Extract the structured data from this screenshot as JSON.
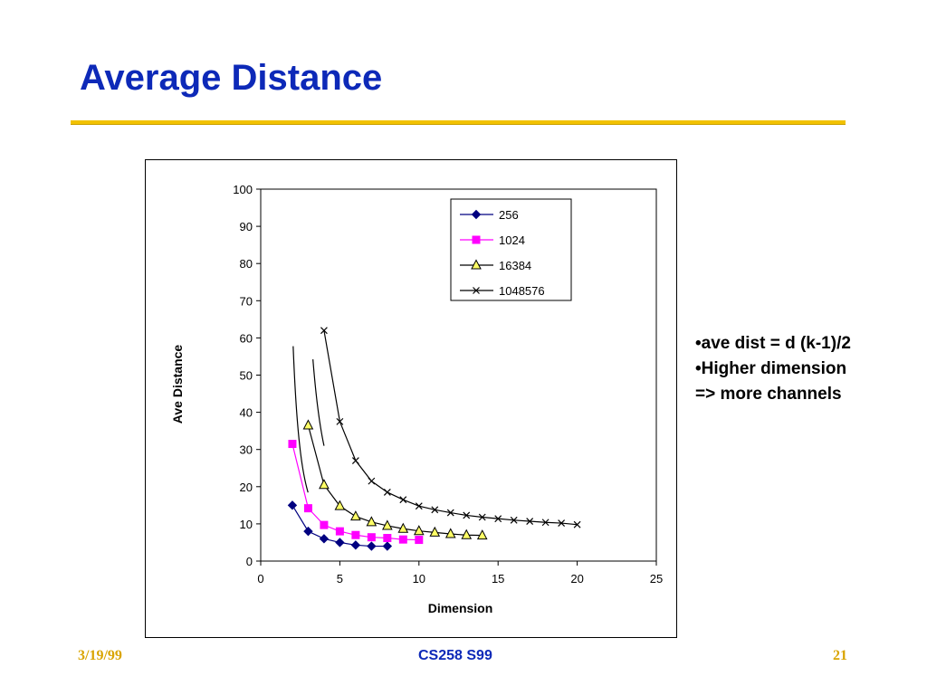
{
  "slide": {
    "title": "Average Distance",
    "accent_color": "#0d29b8",
    "rule_color": "#f2c200"
  },
  "notes": [
    "•ave dist = d (k-1)/2",
    "•Higher dimension",
    "=> more channels"
  ],
  "footer": {
    "date": "3/19/99",
    "course": "CS258 S99",
    "page": "21"
  },
  "chart_data": {
    "type": "line",
    "xlabel": "Dimension",
    "ylabel": "Ave Distance",
    "xlim": [
      0,
      25
    ],
    "ylim": [
      0,
      100
    ],
    "xticks": [
      0,
      5,
      10,
      15,
      20,
      25
    ],
    "yticks": [
      0,
      10,
      20,
      30,
      40,
      50,
      60,
      70,
      80,
      90,
      100
    ],
    "grid": false,
    "legend_position": "top-right",
    "series": [
      {
        "name": "256",
        "color": "#000080",
        "marker": "diamond",
        "x": [
          2,
          3,
          4,
          5,
          6,
          7,
          8
        ],
        "y": [
          15,
          8,
          6,
          5,
          4.3,
          4,
          4
        ]
      },
      {
        "name": "1024",
        "color": "#ff00ff",
        "marker": "square",
        "x": [
          2,
          3,
          4,
          5,
          6,
          7,
          8,
          9,
          10
        ],
        "y": [
          31.5,
          14.2,
          9.7,
          8,
          7,
          6.4,
          6.2,
          5.8,
          5.7
        ]
      },
      {
        "name": "16384",
        "color": "#000000",
        "marker": "triangle",
        "x": [
          3,
          4,
          5,
          6,
          7,
          8,
          9,
          10,
          11,
          12,
          13,
          14
        ],
        "y": [
          36.5,
          20.5,
          14.8,
          12,
          10.5,
          9.5,
          8.7,
          8.1,
          7.7,
          7.3,
          7,
          6.9
        ]
      },
      {
        "name": "1048576",
        "color": "#000000",
        "marker": "x",
        "x": [
          4,
          5,
          6,
          7,
          8,
          9,
          10,
          11,
          12,
          13,
          14,
          15,
          16,
          17,
          18,
          19,
          20
        ],
        "y": [
          62,
          37.5,
          27,
          21.5,
          18.5,
          16.5,
          14.8,
          13.8,
          13,
          12.3,
          11.8,
          11.4,
          11,
          10.7,
          10.4,
          10.2,
          9.8
        ]
      }
    ]
  }
}
